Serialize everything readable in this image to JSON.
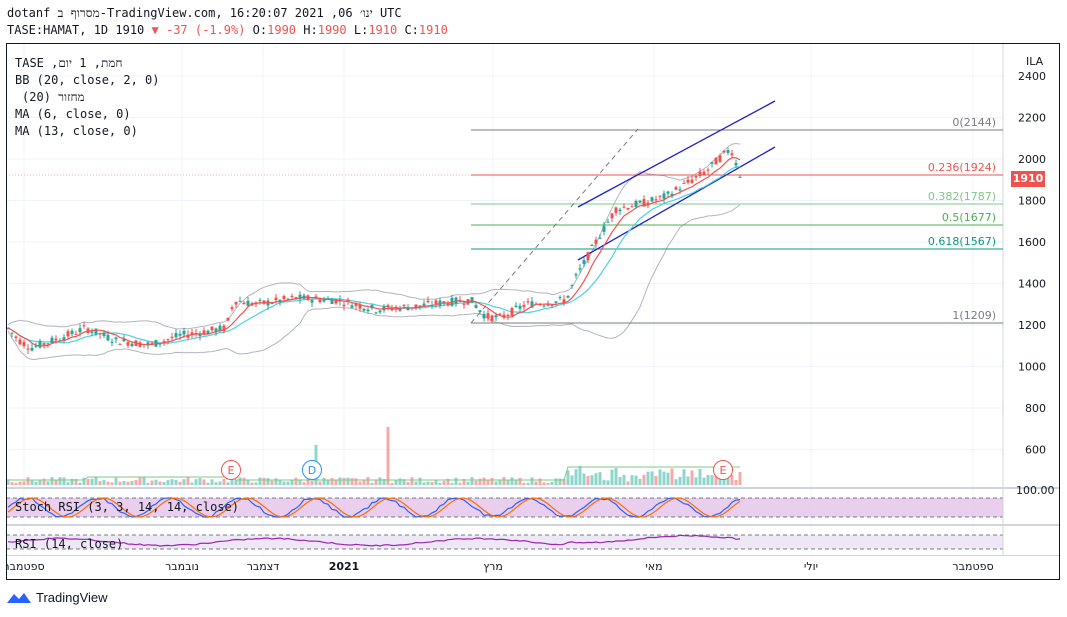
{
  "header": {
    "line1": "dotanf מסרוף ב-TradingView.com, ינו׳ 06, 2021 16:20:07 UTC",
    "symbol": "TASE:HAMAT, 1D 1910",
    "change": "▼ -37 (-1.9%)",
    "o_label": "O:",
    "o_val": "1990",
    "h_label": "H:",
    "h_val": "1990",
    "l_label": "L:",
    "l_val": "1910",
    "c_label": "C:",
    "c_val": "1910"
  },
  "indicators": {
    "title": "TASE ,חמת, 1 יום",
    "bb": "BB (20, close, 2, 0)",
    "volume": "מחזור (20)",
    "ma6": "MA (6, close, 0)",
    "ma13": "MA (13, close, 0)",
    "stoch": "Stoch RSI (3, 3, 14, 14, close)",
    "rsi": "RSI (14, close)"
  },
  "price_axis": {
    "currency": "ILA",
    "ticks": [
      "2400",
      "2200",
      "2000",
      "1800",
      "1600",
      "1400",
      "1200",
      "1000",
      "800",
      "600"
    ],
    "last_price": "1910",
    "osc_tick": "100.00"
  },
  "time_axis": {
    "labels": [
      "ספטמבר",
      "נובמבר",
      "דצמבר",
      "2021",
      "מרץ",
      "מאי",
      "יולי",
      "ספטמבר"
    ]
  },
  "fibonacci": [
    {
      "label": "0(2144)",
      "color": "#787b86"
    },
    {
      "label": "0.236(1924)",
      "color": "#ef5350"
    },
    {
      "label": "0.382(1787)",
      "color": "#81c784"
    },
    {
      "label": "0.5(1677)",
      "color": "#4caf50"
    },
    {
      "label": "0.618(1567)",
      "color": "#089981"
    },
    {
      "label": "1(1209)",
      "color": "#787b86"
    }
  ],
  "events": [
    {
      "letter": "E",
      "color": "#ef5350"
    },
    {
      "letter": "D",
      "color": "#2196f3"
    },
    {
      "letter": "E",
      "color": "#ef5350"
    }
  ],
  "footer": {
    "brand": "TradingView"
  },
  "colors": {
    "up": "#26a69a",
    "down": "#ef5350",
    "channel": "#1e22c8",
    "stoch_fill": "#e1bee7",
    "rsi": "#9c27b0"
  }
}
